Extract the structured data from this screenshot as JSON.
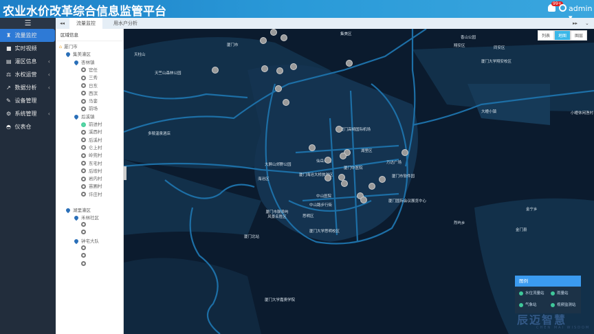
{
  "header": {
    "title": "农业水价改革综合信息监管平台",
    "badge": "99+",
    "user": "admin"
  },
  "sidebar": {
    "items": [
      {
        "label": "流量监控",
        "icon": "binoculars-icon",
        "active": true
      },
      {
        "label": "实时视频",
        "icon": "video-icon"
      },
      {
        "label": "灌区信息",
        "icon": "info-card-icon",
        "submenu": true
      },
      {
        "label": "水权运营",
        "icon": "scale-icon",
        "submenu": true
      },
      {
        "label": "数据分析",
        "icon": "line-chart-icon",
        "submenu": true
      },
      {
        "label": "设备管理",
        "icon": "plug-icon"
      },
      {
        "label": "系统管理",
        "icon": "cogs-icon",
        "submenu": true
      },
      {
        "label": "仪表仓",
        "icon": "dashboard-icon"
      }
    ]
  },
  "tabs": [
    {
      "label": "流量监控",
      "active": true
    },
    {
      "label": "用水户分析"
    }
  ],
  "tree": {
    "title": "区域信息",
    "root": "厦门市",
    "d1": "集美灌区",
    "t1": "杏林镇",
    "t1v": [
      "官任",
      "三秀",
      "日东",
      "西滨",
      "马銮",
      "前场"
    ],
    "t2": "后溪镇",
    "t2v": [
      "前进村",
      "溪西村",
      "后溪村",
      "仑上村",
      "岭兜村",
      "东宅村",
      "后垵村",
      "岩内村",
      "苗圃村",
      "许庄村"
    ],
    "d2": "湖里灌区",
    "t3": "禾林社区",
    "t4": "钟宅大队"
  },
  "map": {
    "view_buttons": [
      "列表",
      "地图",
      "图层"
    ],
    "active_view": "地图",
    "labels": [
      "天柱山",
      "天竺山森林公园",
      "多稜温泉酒店",
      "大屏山郊野公园",
      "海沧区",
      "厦门海沧大桥旅游区",
      "中山医院",
      "思明区",
      "中山路步行街",
      "厦门市鼓浪屿风景名胜区",
      "厦门大学思明校区",
      "厦门中医院",
      "湖里区",
      "仙岳公园",
      "厦门高崎国际机场",
      "万达广场",
      "厦门市软件园",
      "厦门国际会议展览中心",
      "翔安区",
      "厦门大学翔安校区",
      "香山公园",
      "大嶝小镇",
      "小嶝休闲渔村",
      "金宁乡",
      "金门县",
      "烈屿乡",
      "同安区",
      "厦门大学嘉庚学院",
      "厦门市",
      "集美区",
      "厦门北站"
    ],
    "legend": {
      "title": "图例",
      "items": [
        "水位流量站",
        "雨量站",
        "气象站",
        "视频监测站"
      ]
    }
  },
  "watermark": {
    "text": "辰迈智慧",
    "sub": "CHEN MAI WISDOM"
  }
}
